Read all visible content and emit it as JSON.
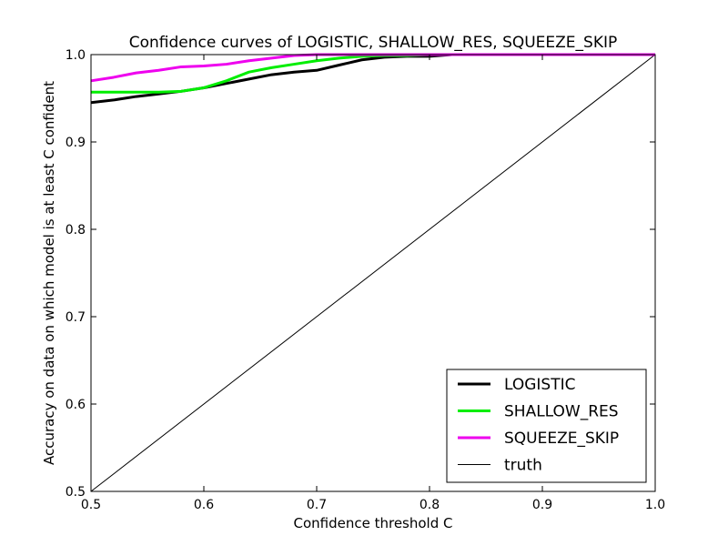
{
  "chart_data": {
    "type": "line",
    "title": "Confidence curves of LOGISTIC, SHALLOW_RES, SQUEEZE_SKIP",
    "xlabel": "Confidence threshold C",
    "ylabel": "Accuracy on data on which model is at least C confident",
    "xlim": [
      0.5,
      1.0
    ],
    "ylim": [
      0.5,
      1.0
    ],
    "xticks": [
      "0.5",
      "0.6",
      "0.7",
      "0.8",
      "0.9",
      "1.0"
    ],
    "yticks": [
      "0.5",
      "0.6",
      "0.7",
      "0.8",
      "0.9",
      "1.0"
    ],
    "grid": false,
    "legend_position": "lower-right",
    "series": [
      {
        "name": "LOGISTIC",
        "color": "#000000",
        "width": "thick",
        "x": [
          0.5,
          0.52,
          0.54,
          0.56,
          0.58,
          0.6,
          0.62,
          0.64,
          0.66,
          0.68,
          0.7,
          0.72,
          0.74,
          0.76,
          0.78,
          0.8,
          0.82,
          0.85,
          0.9,
          0.95,
          1.0
        ],
        "y": [
          0.945,
          0.948,
          0.952,
          0.955,
          0.958,
          0.962,
          0.967,
          0.972,
          0.977,
          0.98,
          0.982,
          0.988,
          0.994,
          0.997,
          0.998,
          0.998,
          1.0,
          1.0,
          1.0,
          1.0,
          1.0
        ]
      },
      {
        "name": "SHALLOW_RES",
        "color": "#00ee00",
        "width": "thick",
        "x": [
          0.5,
          0.52,
          0.54,
          0.56,
          0.58,
          0.6,
          0.62,
          0.64,
          0.66,
          0.68,
          0.7,
          0.72,
          0.74,
          0.76,
          0.78,
          0.8,
          0.85,
          0.9,
          0.95,
          1.0
        ],
        "y": [
          0.957,
          0.957,
          0.957,
          0.957,
          0.958,
          0.962,
          0.97,
          0.98,
          0.985,
          0.989,
          0.993,
          0.996,
          0.998,
          0.999,
          0.999,
          1.0,
          1.0,
          1.0,
          1.0,
          1.0
        ]
      },
      {
        "name": "SQUEEZE_SKIP",
        "color": "#ee00ee",
        "width": "thick",
        "x": [
          0.5,
          0.52,
          0.54,
          0.56,
          0.58,
          0.6,
          0.62,
          0.64,
          0.66,
          0.68,
          0.7,
          0.75,
          0.8,
          0.85,
          0.9,
          0.95,
          1.0
        ],
        "y": [
          0.97,
          0.974,
          0.979,
          0.982,
          0.986,
          0.987,
          0.989,
          0.993,
          0.996,
          0.999,
          1.0,
          1.0,
          1.0,
          1.0,
          1.0,
          1.0,
          1.0
        ]
      },
      {
        "name": "truth",
        "color": "#000000",
        "width": "thin",
        "x": [
          0.5,
          1.0
        ],
        "y": [
          0.5,
          1.0
        ]
      }
    ]
  }
}
